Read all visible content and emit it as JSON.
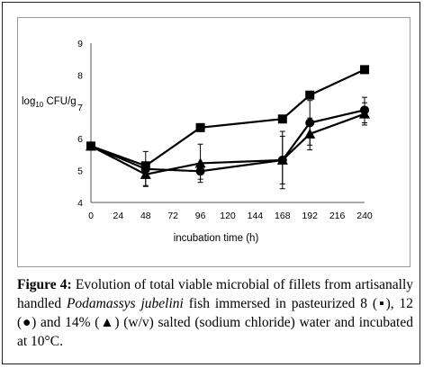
{
  "chart_data": {
    "type": "line",
    "ylabel": "log10 CFU/g",
    "ylabel_main": "log",
    "ylabel_sub": "10",
    "ylabel_tail": " CFU/g",
    "xlabel": "incubation time (h)",
    "x": [
      0,
      48,
      96,
      168,
      192,
      240
    ],
    "xticks": [
      "0",
      "24",
      "48",
      "72",
      "96",
      "120",
      "144",
      "168",
      "192",
      "216",
      "240"
    ],
    "yticks": [
      "4",
      "5",
      "6",
      "7",
      "8",
      "9"
    ],
    "xlim": [
      0,
      240
    ],
    "ylim": [
      4,
      9
    ],
    "grid": false,
    "series": [
      {
        "marker": "square",
        "values": [
          5.77,
          5.15,
          6.35,
          6.62,
          7.37,
          8.17
        ],
        "errors": [
          0.1,
          0.08,
          0.08,
          0.1,
          0.08,
          0.07
        ]
      },
      {
        "marker": "circle",
        "values": [
          5.77,
          5.05,
          4.98,
          5.33,
          6.5,
          6.9
        ],
        "errors": [
          0.1,
          0.55,
          0.25,
          0.9,
          0.7,
          0.4
        ]
      },
      {
        "marker": "triangle",
        "values": [
          5.77,
          4.88,
          5.23,
          5.33,
          6.15,
          6.78
        ],
        "errors": [
          0.1,
          0.35,
          0.6,
          0.75,
          0.5,
          0.35
        ]
      }
    ]
  },
  "caption": {
    "label": "Figure 4:",
    "text_1": " Evolution of total viable microbial of fillets from artisanally handled ",
    "species": "Podamassys jubelini",
    "text_2": " fish immersed in pasteurized 8 (▪), 12 (●) and 14% (▲) (w/v) salted (sodium chloride) water and incubated at 10°C."
  }
}
